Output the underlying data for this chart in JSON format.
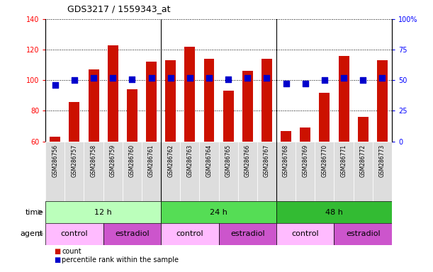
{
  "title": "GDS3217 / 1559343_at",
  "samples": [
    "GSM286756",
    "GSM286757",
    "GSM286758",
    "GSM286759",
    "GSM286760",
    "GSM286761",
    "GSM286762",
    "GSM286763",
    "GSM286764",
    "GSM286765",
    "GSM286766",
    "GSM286767",
    "GSM286768",
    "GSM286769",
    "GSM286770",
    "GSM286771",
    "GSM286772",
    "GSM286773"
  ],
  "counts": [
    63,
    86,
    107,
    123,
    94,
    112,
    113,
    122,
    114,
    93,
    106,
    114,
    67,
    69,
    92,
    116,
    76,
    113
  ],
  "percentile_ranks": [
    46,
    50,
    52,
    52,
    51,
    52,
    52,
    52,
    52,
    51,
    52,
    52,
    47,
    47,
    50,
    52,
    50,
    52
  ],
  "bar_color": "#cc1100",
  "dot_color": "#0000cc",
  "left_ylim": [
    60,
    140
  ],
  "left_yticks": [
    60,
    80,
    100,
    120,
    140
  ],
  "right_ylim": [
    0,
    100
  ],
  "right_yticks": [
    0,
    25,
    50,
    75,
    100
  ],
  "right_yticklabels": [
    "0",
    "25",
    "50",
    "75",
    "100%"
  ],
  "time_groups": [
    {
      "label": "12 h",
      "start": 0,
      "end": 6,
      "color": "#bbffbb"
    },
    {
      "label": "24 h",
      "start": 6,
      "end": 12,
      "color": "#55dd55"
    },
    {
      "label": "48 h",
      "start": 12,
      "end": 18,
      "color": "#33bb33"
    }
  ],
  "agent_groups": [
    {
      "label": "control",
      "start": 0,
      "end": 3,
      "color": "#ffbbff"
    },
    {
      "label": "estradiol",
      "start": 3,
      "end": 6,
      "color": "#cc55cc"
    },
    {
      "label": "control",
      "start": 6,
      "end": 9,
      "color": "#ffbbff"
    },
    {
      "label": "estradiol",
      "start": 9,
      "end": 12,
      "color": "#cc55cc"
    },
    {
      "label": "control",
      "start": 12,
      "end": 15,
      "color": "#ffbbff"
    },
    {
      "label": "estradiol",
      "start": 15,
      "end": 18,
      "color": "#cc55cc"
    }
  ],
  "xlabels_bg": "#dddddd",
  "bar_width": 0.55,
  "dot_size": 28,
  "legend_count_color": "#cc1100",
  "legend_dot_color": "#0000cc"
}
